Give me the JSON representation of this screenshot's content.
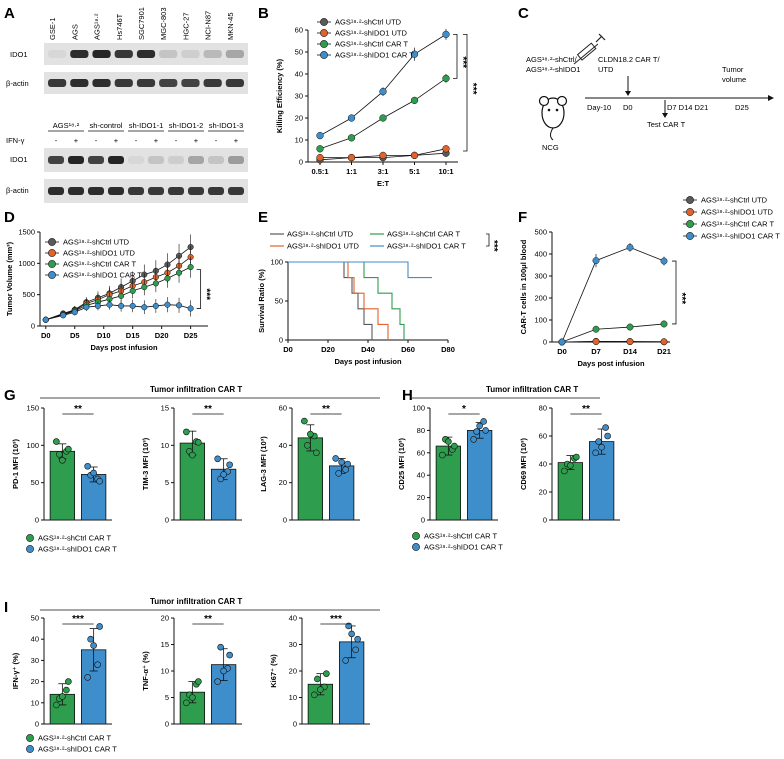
{
  "colors": {
    "shCtrl_UTD": "#5a5a5a",
    "shIDO1_UTD": "#e2622b",
    "shCtrl_CAR_T": "#2e9d4e",
    "shIDO1_CAR_T": "#3f8ecc",
    "blot_bg": "#e2e2e2",
    "band": "#1a1a1a"
  },
  "panel_labels": {
    "A": "A",
    "B": "B",
    "C": "C",
    "D": "D",
    "E": "E",
    "F": "F",
    "G": "G",
    "H": "H",
    "I": "I"
  },
  "panelA": {
    "top_lanes": [
      "GSE-1",
      "AGS",
      "AGS¹⁸·²",
      "Hs746T",
      "SGC7901",
      "MGC-803",
      "HGC-27",
      "NCI-N87",
      "MKN-45"
    ],
    "top_ido1": [
      0.05,
      0.9,
      0.95,
      0.85,
      0.9,
      0.15,
      0.1,
      0.2,
      0.3
    ],
    "top_actin": [
      0.85,
      0.9,
      0.9,
      0.85,
      0.85,
      0.8,
      0.8,
      0.85,
      0.85
    ],
    "bottom_groups": [
      "AGS¹⁸·²",
      "sh-control",
      "sh-IDO1-1",
      "sh-IDO1-2",
      "sh-IDO1-3"
    ],
    "ifn_label": "IFN-γ",
    "ifn_signs": [
      "-",
      "+",
      "-",
      "+",
      "-",
      "+",
      "-",
      "+",
      "-",
      "+"
    ],
    "bottom_ido1": [
      0.8,
      0.95,
      0.8,
      0.95,
      0.05,
      0.15,
      0.1,
      0.3,
      0.15,
      0.35
    ],
    "bottom_actin": [
      0.9,
      0.9,
      0.9,
      0.9,
      0.85,
      0.85,
      0.85,
      0.85,
      0.85,
      0.85
    ],
    "row_labels": {
      "ido1": "IDO1",
      "actin": "β-actin"
    }
  },
  "legend_four": [
    "AGS¹⁸·²-shCtrl UTD",
    "AGS¹⁸·²-shIDO1 UTD",
    "AGS¹⁸·²-shCtrl CAR T",
    "AGS¹⁸·²-shIDO1 CAR T"
  ],
  "panelE_legend": [
    "AGS¹⁸·²-shCtrl UTD",
    "AGS¹⁸·²-shIDO1 UTD",
    "AGS¹⁸·²-shCtrl CAR T",
    "AGS¹⁸·²-shIDO1 CAR T"
  ],
  "two_group_legend": [
    "AGS¹⁸·²-shCtrl CAR T",
    "AGS¹⁸·²-shIDO1 CAR T"
  ],
  "panelC": {
    "cells": "AGS¹⁸·²-shCtrl/\nAGS¹⁸·²-shIDO1",
    "mouse": "NCG",
    "injection": "CLDN18.2 CAR T/\nUTD",
    "day_minus10": "Day-10",
    "d0": "D0",
    "test_days": "D7 D14 D21",
    "test_label": "Test CAR T",
    "tumor_label": "Tumor\nvolume",
    "d25": "D25"
  },
  "sections": {
    "G": "Tumor infiltration CAR T",
    "H": "Tumor infiltration CAR T",
    "I": "Tumor infiltration CAR T"
  },
  "chart_data": [
    {
      "id": "B",
      "type": "line",
      "categories": [
        "0.5:1",
        "1:1",
        "3:1",
        "5:1",
        "10:1"
      ],
      "xlabel": "E:T",
      "ylabel": "Killing Efficiency (%)",
      "ylim": [
        0,
        60
      ],
      "yticks": [
        0,
        10,
        20,
        30,
        40,
        50,
        60
      ],
      "series": [
        {
          "name": "AGS¹⁸·²-shCtrl UTD",
          "values": [
            1,
            2,
            2,
            3,
            4
          ],
          "err": [
            0.5,
            0.5,
            0.5,
            0.5,
            0.8
          ]
        },
        {
          "name": "AGS¹⁸·²-shIDO1 UTD",
          "values": [
            2,
            2,
            3,
            3,
            6
          ],
          "err": [
            0.5,
            0.5,
            0.5,
            0.5,
            1
          ]
        },
        {
          "name": "AGS¹⁸·²-shCtrl CAR T",
          "values": [
            6,
            11,
            20,
            28,
            38
          ],
          "err": [
            1,
            1,
            1.5,
            1.5,
            2
          ]
        },
        {
          "name": "AGS¹⁸·²-shIDO1 CAR T",
          "values": [
            12,
            20,
            32,
            49,
            58
          ],
          "err": [
            1.5,
            1.5,
            2,
            3,
            2.5
          ]
        }
      ],
      "annotations": [
        "***",
        "***"
      ]
    },
    {
      "id": "D",
      "type": "line",
      "x": [
        0,
        3,
        5,
        7,
        9,
        11,
        13,
        15,
        17,
        19,
        21,
        23,
        25
      ],
      "xticks": [
        0,
        5,
        10,
        15,
        20,
        25
      ],
      "xticklabels": [
        "D0",
        "D5",
        "D10",
        "D15",
        "D20",
        "D25"
      ],
      "xlabel": "Days post infusion",
      "ylabel": "Tumor Volume (mm³)",
      "ylim": [
        0,
        1500
      ],
      "yticks": [
        0,
        500,
        1000,
        1500
      ],
      "xlim": [
        -1,
        28
      ],
      "series": [
        {
          "name": "AGS¹⁸·²-shCtrl UTD",
          "values": [
            100,
            200,
            260,
            380,
            450,
            520,
            620,
            720,
            820,
            880,
            980,
            1120,
            1260
          ],
          "err": [
            20,
            40,
            60,
            80,
            100,
            120,
            140,
            150,
            160,
            170,
            180,
            190,
            200
          ]
        },
        {
          "name": "AGS¹⁸·²-shIDO1 UTD",
          "values": [
            100,
            190,
            250,
            360,
            420,
            500,
            560,
            640,
            700,
            780,
            850,
            960,
            1100
          ],
          "err": [
            20,
            40,
            60,
            80,
            100,
            110,
            120,
            130,
            140,
            150,
            160,
            170,
            180
          ]
        },
        {
          "name": "AGS¹⁸·²-shCtrl CAR T",
          "values": [
            100,
            180,
            240,
            330,
            380,
            430,
            480,
            560,
            620,
            680,
            760,
            850,
            940
          ],
          "err": [
            20,
            40,
            60,
            80,
            90,
            100,
            110,
            120,
            130,
            140,
            150,
            160,
            170
          ]
        },
        {
          "name": "AGS¹⁸·²-shIDO1 CAR T",
          "values": [
            100,
            170,
            220,
            300,
            320,
            340,
            320,
            320,
            300,
            320,
            340,
            330,
            280
          ],
          "err": [
            20,
            30,
            50,
            60,
            70,
            80,
            90,
            100,
            110,
            110,
            120,
            120,
            130
          ]
        }
      ],
      "annotations": [
        "***"
      ]
    },
    {
      "id": "E",
      "type": "line",
      "xlabel": "Days post infusion",
      "ylabel": "Survival Ratio (%)",
      "xlim": [
        0,
        80
      ],
      "ylim": [
        0,
        100
      ],
      "xticks": [
        0,
        20,
        40,
        60,
        80
      ],
      "xticklabels": [
        "D0",
        "D20",
        "D40",
        "D60",
        "D80"
      ],
      "yticks": [
        0,
        50,
        100
      ],
      "series": [
        {
          "name": "AGS¹⁸·²-shCtrl UTD",
          "steps": [
            [
              0,
              100
            ],
            [
              28,
              100
            ],
            [
              28,
              80
            ],
            [
              32,
              80
            ],
            [
              32,
              60
            ],
            [
              35,
              60
            ],
            [
              35,
              40
            ],
            [
              38,
              40
            ],
            [
              38,
              20
            ],
            [
              42,
              20
            ],
            [
              42,
              0
            ]
          ]
        },
        {
          "name": "AGS¹⁸·²-shIDO1 UTD",
          "steps": [
            [
              0,
              100
            ],
            [
              30,
              100
            ],
            [
              30,
              80
            ],
            [
              33,
              80
            ],
            [
              33,
              60
            ],
            [
              38,
              60
            ],
            [
              38,
              40
            ],
            [
              45,
              40
            ],
            [
              45,
              20
            ],
            [
              50,
              20
            ],
            [
              50,
              0
            ]
          ]
        },
        {
          "name": "AGS¹⁸·²-shCtrl CAR T",
          "steps": [
            [
              0,
              100
            ],
            [
              38,
              100
            ],
            [
              38,
              80
            ],
            [
              45,
              80
            ],
            [
              45,
              60
            ],
            [
              52,
              60
            ],
            [
              52,
              40
            ],
            [
              56,
              40
            ],
            [
              56,
              20
            ],
            [
              58,
              20
            ],
            [
              58,
              0
            ]
          ]
        },
        {
          "name": "AGS¹⁸·²-shIDO1 CAR T",
          "steps": [
            [
              0,
              100
            ],
            [
              60,
              100
            ],
            [
              60,
              80
            ],
            [
              72,
              80
            ]
          ]
        }
      ],
      "annotations": [
        "***"
      ]
    },
    {
      "id": "F",
      "type": "line",
      "categories": [
        "D0",
        "D7",
        "D14",
        "D21"
      ],
      "xlabel": "Days post infusion",
      "ylabel": "CAR-T cells  in 100μl blood",
      "ylim": [
        0,
        500
      ],
      "yticks": [
        0,
        100,
        200,
        300,
        400,
        500
      ],
      "series": [
        {
          "name": "AGS¹⁸·²-shCtrl UTD",
          "values": [
            0,
            3,
            2,
            1
          ],
          "err": [
            0,
            2,
            2,
            1
          ]
        },
        {
          "name": "AGS¹⁸·²-shIDO1 UTD",
          "values": [
            0,
            2,
            2,
            1
          ],
          "err": [
            0,
            1,
            1,
            1
          ]
        },
        {
          "name": "AGS¹⁸·²-shCtrl CAR T",
          "values": [
            0,
            58,
            68,
            82
          ],
          "err": [
            0,
            12,
            15,
            15
          ]
        },
        {
          "name": "AGS¹⁸·²-shIDO1 CAR T",
          "values": [
            0,
            370,
            430,
            368
          ],
          "err": [
            0,
            30,
            20,
            20
          ]
        }
      ],
      "annotations": [
        "***"
      ]
    },
    {
      "id": "G1",
      "type": "bar",
      "ylabel": "PD-1 MFI (10³)",
      "ylim": [
        0,
        150
      ],
      "yticks": [
        0,
        50,
        100,
        150
      ],
      "values": [
        92,
        61
      ],
      "err": [
        10,
        10
      ],
      "points": [
        [
          105,
          92,
          88,
          95,
          80
        ],
        [
          72,
          55,
          60,
          52,
          63
        ]
      ],
      "sig": "**"
    },
    {
      "id": "G2",
      "type": "bar",
      "ylabel": "TIM-3 MFI (10³)",
      "ylim": [
        0,
        15
      ],
      "yticks": [
        0,
        5,
        10,
        15
      ],
      "values": [
        10.3,
        6.8
      ],
      "err": [
        1.6,
        1.4
      ],
      "points": [
        [
          11.8,
          10.5,
          9.2,
          10.4,
          8.7
        ],
        [
          8.2,
          6.5,
          5.5,
          7.4,
          6.1
        ]
      ],
      "sig": "**"
    },
    {
      "id": "G3",
      "type": "bar",
      "ylabel": "LAG-3 MFI (10³)",
      "ylim": [
        0,
        60
      ],
      "yticks": [
        0,
        20,
        40,
        60
      ],
      "values": [
        44,
        29
      ],
      "err": [
        7,
        4
      ],
      "points": [
        [
          53,
          45,
          40,
          36,
          46
        ],
        [
          33,
          27,
          25,
          30,
          31
        ]
      ],
      "sig": "**"
    },
    {
      "id": "H1",
      "type": "bar",
      "ylabel": "CD25 MFI (10³)",
      "ylim": [
        0,
        100
      ],
      "yticks": [
        0,
        20,
        40,
        60,
        80,
        100
      ],
      "values": [
        66,
        80
      ],
      "err": [
        8,
        7
      ],
      "points": [
        [
          58,
          63,
          72,
          66,
          70
        ],
        [
          72,
          88,
          79,
          80,
          84
        ]
      ],
      "sig": "*"
    },
    {
      "id": "H2",
      "type": "bar",
      "ylabel": "CD69 MFI (10³)",
      "ylim": [
        0,
        80
      ],
      "yticks": [
        0,
        20,
        40,
        60,
        80
      ],
      "values": [
        41,
        56
      ],
      "err": [
        5,
        9
      ],
      "points": [
        [
          35,
          44,
          40,
          45,
          39
        ],
        [
          48,
          66,
          56,
          60,
          52
        ]
      ],
      "sig": "**"
    },
    {
      "id": "I1",
      "type": "bar",
      "ylabel": "IFN-γ⁺ (%)",
      "ylim": [
        0,
        50
      ],
      "yticks": [
        0,
        10,
        20,
        30,
        40,
        50
      ],
      "values": [
        14,
        35
      ],
      "err": [
        5,
        10
      ],
      "points": [
        [
          9,
          16,
          12,
          20,
          13
        ],
        [
          22,
          28,
          40,
          46,
          37
        ]
      ],
      "sig": "***"
    },
    {
      "id": "I2",
      "type": "bar",
      "ylabel": "TNF-α⁺ (%)",
      "ylim": [
        0,
        20
      ],
      "yticks": [
        0,
        5,
        10,
        15,
        20
      ],
      "values": [
        6,
        11.2
      ],
      "err": [
        2,
        3
      ],
      "points": [
        [
          4,
          7.5,
          5.5,
          8,
          5
        ],
        [
          8,
          10.5,
          14.5,
          13,
          10
        ]
      ],
      "sig": "**"
    },
    {
      "id": "I3",
      "type": "bar",
      "ylabel": "Ki67⁺ (%)",
      "ylim": [
        0,
        40
      ],
      "yticks": [
        0,
        10,
        20,
        30,
        40
      ],
      "values": [
        15,
        31
      ],
      "err": [
        4,
        6
      ],
      "points": [
        [
          11,
          14,
          17,
          19,
          13
        ],
        [
          24,
          28,
          37,
          32,
          34
        ]
      ],
      "sig": "***"
    }
  ]
}
